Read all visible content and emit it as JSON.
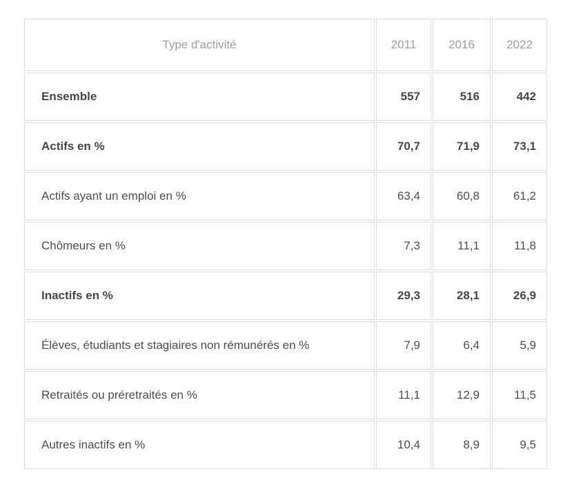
{
  "colors": {
    "border": "#dcdcdc",
    "header_text": "#9e9e9e",
    "body_text": "#4d4d4d",
    "background": "#ffffff"
  },
  "chart_data": {
    "type": "table",
    "title": "",
    "columns": [
      "Type d'activité",
      "2011",
      "2016",
      "2022"
    ],
    "rows": [
      {
        "label": "Ensemble",
        "emphasis": true,
        "values": [
          "557",
          "516",
          "442"
        ]
      },
      {
        "label": "Actifs en %",
        "emphasis": true,
        "values": [
          "70,7",
          "71,9",
          "73,1"
        ]
      },
      {
        "label": "Actifs ayant un emploi en %",
        "emphasis": false,
        "values": [
          "63,4",
          "60,8",
          "61,2"
        ]
      },
      {
        "label": "Chômeurs en %",
        "emphasis": false,
        "values": [
          "7,3",
          "11,1",
          "11,8"
        ]
      },
      {
        "label": "Inactifs en %",
        "emphasis": true,
        "values": [
          "29,3",
          "28,1",
          "26,9"
        ]
      },
      {
        "label": "Élèves, étudiants et stagiaires non rémunérés en %",
        "emphasis": false,
        "values": [
          "7,9",
          "6,4",
          "5,9"
        ]
      },
      {
        "label": "Retraités ou préretraités en %",
        "emphasis": false,
        "values": [
          "11,1",
          "12,9",
          "11,5"
        ]
      },
      {
        "label": "Autres inactifs en %",
        "emphasis": false,
        "values": [
          "10,4",
          "8,9",
          "9,5"
        ]
      }
    ]
  }
}
